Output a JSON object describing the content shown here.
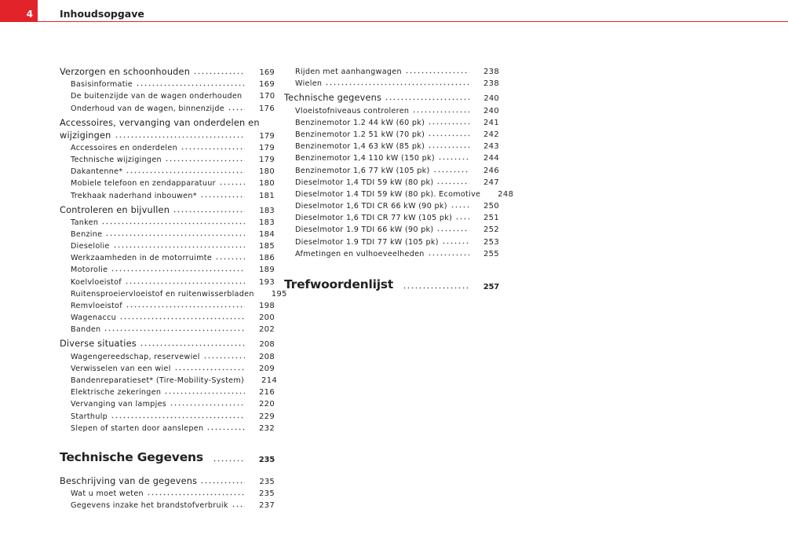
{
  "header": {
    "page_number": "4",
    "title": "Inhoudsopgave"
  },
  "left_column": [
    {
      "level": 1,
      "label": "Verzorgen en schoonhouden",
      "page": "169"
    },
    {
      "level": 2,
      "label": "Basisinformatie",
      "page": "169"
    },
    {
      "level": 2,
      "label": "De buitenzijde van de wagen onderhouden",
      "page": "170"
    },
    {
      "level": 2,
      "label": "Onderhoud van de wagen, binnenzijde",
      "page": "176"
    },
    {
      "level": 0,
      "label": "Accessoires, vervanging van onderdelen en"
    },
    {
      "level": 1,
      "label": "wijzigingen",
      "page": "179",
      "cont": true
    },
    {
      "level": 2,
      "label": "Accessoires en onderdelen",
      "page": "179"
    },
    {
      "level": 2,
      "label": "Technische wijzigingen",
      "page": "179"
    },
    {
      "level": 2,
      "label": "Dakantenne*",
      "page": "180"
    },
    {
      "level": 2,
      "label": "Mobiele telefoon en zendapparatuur",
      "page": "180"
    },
    {
      "level": 2,
      "label": "Trekhaak naderhand inbouwen*",
      "page": "181"
    },
    {
      "level": 1,
      "label": "Controleren en bijvullen",
      "page": "183"
    },
    {
      "level": 2,
      "label": "Tanken",
      "page": "183"
    },
    {
      "level": 2,
      "label": "Benzine",
      "page": "184"
    },
    {
      "level": 2,
      "label": "Dieselolie",
      "page": "185"
    },
    {
      "level": 2,
      "label": "Werkzaamheden in de motorruimte",
      "page": "186"
    },
    {
      "level": 2,
      "label": "Motorolie",
      "page": "189"
    },
    {
      "level": 2,
      "label": "Koelvloeistof",
      "page": "193"
    },
    {
      "level": 2,
      "label": "Ruitensproeiervloeistof en ruitenwisserbladen",
      "page": "195"
    },
    {
      "level": 2,
      "label": "Remvloeistof",
      "page": "198"
    },
    {
      "level": 2,
      "label": "Wagenaccu",
      "page": "200"
    },
    {
      "level": 2,
      "label": "Banden",
      "page": "202"
    },
    {
      "level": 1,
      "label": "Diverse situaties",
      "page": "208"
    },
    {
      "level": 2,
      "label": "Wagengereedschap, reservewiel",
      "page": "208"
    },
    {
      "level": 2,
      "label": "Verwisselen van een wiel",
      "page": "209"
    },
    {
      "level": 2,
      "label": "Bandenreparatieset* (Tire-Mobility-System)",
      "page": "214"
    },
    {
      "level": 2,
      "label": "Elektrische zekeringen",
      "page": "216"
    },
    {
      "level": 2,
      "label": "Vervanging van lampjes",
      "page": "220"
    },
    {
      "level": 2,
      "label": "Starthulp",
      "page": "229"
    },
    {
      "level": 2,
      "label": "Slepen of starten door aanslepen",
      "page": "232"
    },
    {
      "level": 3,
      "label": "Technische Gegevens",
      "page": "235"
    },
    {
      "level": 1,
      "label": "Beschrijving van de gegevens",
      "page": "235",
      "gap": true
    },
    {
      "level": 2,
      "label": "Wat u moet weten",
      "page": "235"
    },
    {
      "level": 2,
      "label": "Gegevens inzake het brandstofverbruik",
      "page": "237"
    }
  ],
  "right_column": [
    {
      "level": 2,
      "label": "Rijden met aanhangwagen",
      "page": "238"
    },
    {
      "level": 2,
      "label": "Wielen",
      "page": "238"
    },
    {
      "level": 1,
      "label": "Technische gegevens",
      "page": "240"
    },
    {
      "level": 2,
      "label": "Vloeistofniveaus controleren",
      "page": "240"
    },
    {
      "level": 2,
      "label": "Benzinemotor 1.2 44 kW (60 pk)",
      "page": "241"
    },
    {
      "level": 2,
      "label": "Benzinemotor 1.2 51 kW (70 pk)",
      "page": "242"
    },
    {
      "level": 2,
      "label": "Benzinemotor 1,4 63 kW (85 pk)",
      "page": "243"
    },
    {
      "level": 2,
      "label": "Benzinemotor 1,4 110 kW (150 pk)",
      "page": "244"
    },
    {
      "level": 2,
      "label": "Benzinemotor 1,6 77 kW (105 pk)",
      "page": "246"
    },
    {
      "level": 2,
      "label": "Dieselmotor 1,4 TDI 59 kW (80 pk)",
      "page": "247"
    },
    {
      "level": 2,
      "label": "Dieselmotor 1.4 TDI 59 kW (80 pk). Ecomotive",
      "page": "248"
    },
    {
      "level": 2,
      "label": "Dieselmotor 1,6 TDI CR 66 kW (90 pk)",
      "page": "250"
    },
    {
      "level": 2,
      "label": "Dieselmotor 1,6 TDI CR 77 kW (105 pk)",
      "page": "251"
    },
    {
      "level": 2,
      "label": "Dieselmotor 1.9 TDI 66 kW (90 pk)",
      "page": "252"
    },
    {
      "level": 2,
      "label": "Dieselmotor 1.9 TDI 77 kW (105 pk)",
      "page": "253"
    },
    {
      "level": 2,
      "label": "Afmetingen en vulhoeveelheden",
      "page": "255"
    },
    {
      "level": 3,
      "label": "Trefwoordenlijst",
      "page": "257"
    }
  ],
  "colors": {
    "accent": "#e2232a"
  }
}
